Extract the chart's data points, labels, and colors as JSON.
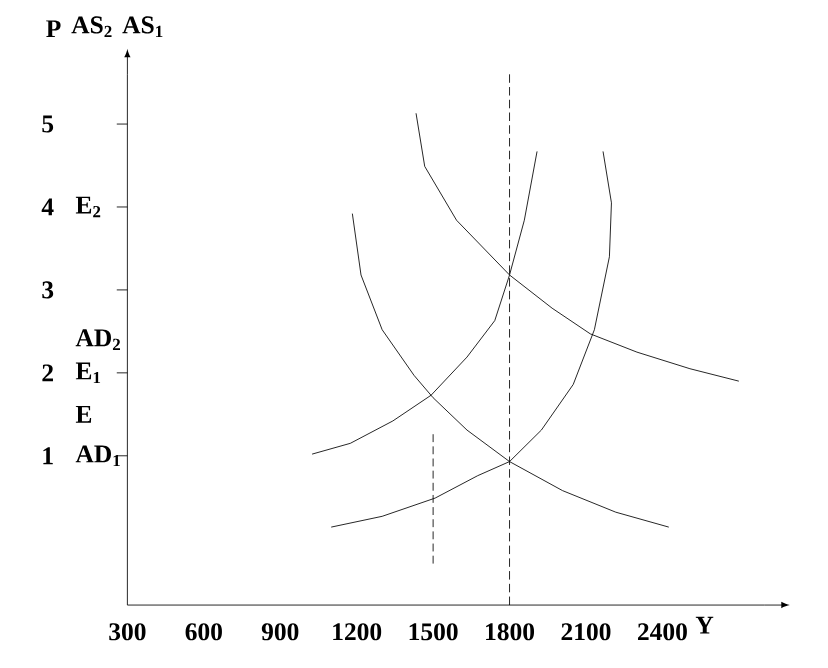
{
  "chart_data": {
    "type": "line",
    "xlabel": "Y",
    "ylabel": "P",
    "xlim": [
      300,
      2800
    ],
    "ylim": [
      -0.8,
      5.6
    ],
    "xticks": [
      300,
      600,
      900,
      1200,
      1500,
      1800,
      2100,
      2400
    ],
    "yticks": [
      1,
      2,
      3,
      4,
      5
    ],
    "grid": false,
    "marker": "none",
    "line_style": "solid",
    "series": [
      {
        "color": "#000000",
        "x": [
          1025,
          1175,
          1342,
          1492,
          1633,
          1742,
          1800,
          1858,
          1908
        ],
        "values": [
          1.02,
          1.15,
          1.42,
          1.73,
          2.19,
          2.63,
          3.18,
          3.84,
          4.67
        ]
      },
      {
        "color": "#000000",
        "x": [
          1100,
          1300,
          1508,
          1675,
          1800,
          1925,
          2050,
          2133,
          2192,
          2200,
          2167
        ],
        "values": [
          0.14,
          0.27,
          0.49,
          0.76,
          0.93,
          1.31,
          1.86,
          2.52,
          3.4,
          4.05,
          4.67
        ]
      },
      {
        "color": "#000000",
        "x": [
          1183,
          1217,
          1300,
          1425,
          1500,
          1633,
          1800,
          2008,
          2217,
          2425
        ],
        "values": [
          3.92,
          3.18,
          2.52,
          1.97,
          1.7,
          1.31,
          0.93,
          0.58,
          0.32,
          0.14
        ]
      },
      {
        "color": "#000000",
        "x": [
          1433,
          1467,
          1592,
          1800,
          1967,
          2117,
          2300,
          2508,
          2700
        ],
        "values": [
          5.13,
          4.49,
          3.84,
          3.18,
          2.78,
          2.47,
          2.25,
          2.05,
          1.9
        ]
      },
      {
        "color": "#000000",
        "line_style": "dashed",
        "x": [
          1500,
          1500
        ],
        "values": [
          -0.3,
          1.26
        ]
      }
    ],
    "ref_lines": [
      {
        "axis": "x",
        "value": 1800,
        "color": "#000000",
        "line_style": "dashed"
      }
    ],
    "annotations": [
      "AS$_{2}$",
      "AS$_{1}$",
      "E$_{2}$",
      "AD$_{2}$",
      "E$_{1}$",
      "E",
      "AD$_{1}$"
    ]
  }
}
